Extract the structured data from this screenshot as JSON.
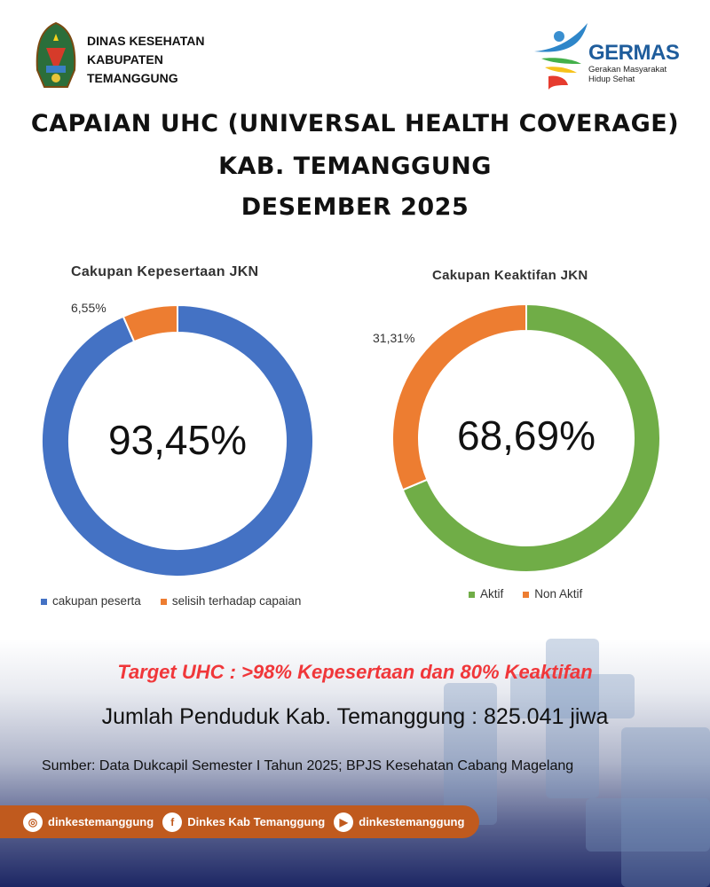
{
  "header": {
    "org_lines": [
      "DINAS KESEHATAN",
      "KABUPATEN",
      "TEMANGGUNG"
    ],
    "germas_word": "GERMAS",
    "germas_sub": [
      "Gerakan Masyarakat",
      "Hidup Sehat"
    ],
    "title_lines": [
      "CAPAIAN UHC (UNIVERSAL HEALTH COVERAGE)",
      "KAB. TEMANGGUNG",
      "DESEMBER 2025"
    ]
  },
  "chart_data": [
    {
      "type": "pie",
      "subtype": "donut",
      "title": "Cakupan Kepesertaan JKN",
      "categories": [
        "cakupan peserta",
        "selisih terhadap capaian"
      ],
      "values": [
        93.45,
        6.55
      ],
      "colors": [
        "#4472c4",
        "#ed7d31"
      ],
      "center_label": "93,45%",
      "data_labels": [
        "6,55%"
      ],
      "legend_position": "bottom"
    },
    {
      "type": "pie",
      "subtype": "donut",
      "title": "Cakupan Keaktifan JKN",
      "categories": [
        "Aktif",
        "Non Aktif"
      ],
      "values": [
        68.69,
        31.31
      ],
      "colors": [
        "#70ad47",
        "#ed7d31"
      ],
      "center_label": "68,69%",
      "data_labels": [
        "31,31%"
      ],
      "legend_position": "bottom"
    }
  ],
  "footer": {
    "target": "Target UHC : >98% Kepesertaan dan 80% Keaktifan",
    "population": "Jumlah Penduduk Kab. Temanggung : 825.041 jiwa",
    "source": "Sumber: Data Dukcapil Semester I Tahun 2025; BPJS Kesehatan Cabang Magelang",
    "social": [
      {
        "icon": "instagram-icon",
        "label": "dinkestemanggung"
      },
      {
        "icon": "facebook-icon",
        "label": "Dinkes Kab Temanggung"
      },
      {
        "icon": "youtube-icon",
        "label": "dinkestemanggung"
      }
    ]
  }
}
